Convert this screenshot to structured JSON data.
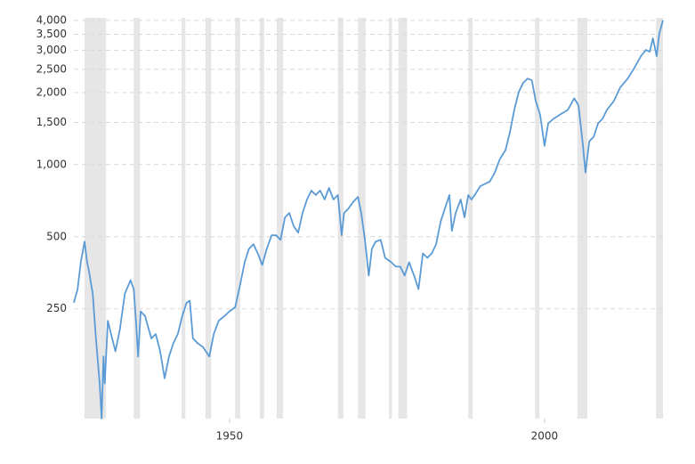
{
  "chart_data": {
    "type": "line",
    "log_scale": true,
    "grid": true,
    "color": "#5b9bd5",
    "band_color": "#e6e6e6",
    "xlim": [
      1925.3,
      2018.8
    ],
    "xticks": [
      1950,
      2000
    ],
    "ylim": [
      87,
      4100
    ],
    "yticks": [
      250,
      500,
      {
        "value": 1000,
        "label": "1,000"
      },
      {
        "value": 1500,
        "label": "1,500"
      },
      {
        "value": 2000,
        "label": "2,000"
      },
      {
        "value": 2500,
        "label": "2,500"
      },
      {
        "value": 3000,
        "label": "3,000"
      },
      {
        "value": 3500,
        "label": "3,500"
      },
      {
        "value": 4000,
        "label": "4,000"
      }
    ],
    "recessions": [
      [
        1927.0,
        1930.4
      ],
      [
        1934.8,
        1935.8
      ],
      [
        1942.4,
        1943.0
      ],
      [
        1946.2,
        1947.1
      ],
      [
        1950.9,
        1951.7
      ],
      [
        1954.8,
        1955.5
      ],
      [
        1957.5,
        1958.5
      ],
      [
        1967.2,
        1968.1
      ],
      [
        1970.4,
        1971.6
      ],
      [
        1975.3,
        1975.8
      ],
      [
        1976.8,
        1978.2
      ],
      [
        1987.9,
        1988.6
      ],
      [
        1998.5,
        1999.2
      ],
      [
        2005.2,
        2006.8
      ],
      [
        2017.7,
        2018.8
      ]
    ],
    "x": [
      1925.3,
      1925.9,
      1926.4,
      1927.0,
      1927.4,
      1927.7,
      1928.3,
      1928.8,
      1929.4,
      1929.7,
      1930.0,
      1930.2,
      1930.7,
      1931.2,
      1931.9,
      1932.6,
      1933.4,
      1934.3,
      1934.8,
      1935.2,
      1935.5,
      1935.9,
      1936.6,
      1937.6,
      1938.3,
      1939.0,
      1939.7,
      1940.4,
      1941.1,
      1941.8,
      1942.5,
      1943.2,
      1943.7,
      1944.2,
      1944.9,
      1945.8,
      1946.8,
      1947.5,
      1948.3,
      1949.2,
      1950.0,
      1950.9,
      1951.7,
      1952.4,
      1953.1,
      1953.8,
      1954.5,
      1955.2,
      1955.9,
      1956.7,
      1957.4,
      1958.1,
      1958.8,
      1959.5,
      1960.2,
      1960.9,
      1961.6,
      1962.3,
      1963.0,
      1963.7,
      1964.4,
      1965.1,
      1965.8,
      1966.5,
      1967.2,
      1967.8,
      1968.2,
      1968.9,
      1969.6,
      1970.4,
      1970.9,
      1971.5,
      1972.1,
      1972.6,
      1973.2,
      1974.0,
      1974.7,
      1975.7,
      1976.4,
      1977.1,
      1977.8,
      1978.5,
      1979.3,
      1980.0,
      1980.7,
      1981.4,
      1982.1,
      1982.8,
      1983.5,
      1984.2,
      1984.9,
      1985.3,
      1985.9,
      1986.7,
      1987.3,
      1987.9,
      1988.4,
      1989.1,
      1989.8,
      1991.3,
      1992.1,
      1992.9,
      1993.8,
      1994.5,
      1995.2,
      1995.9,
      1996.6,
      1997.3,
      1998.0,
      1998.6,
      1999.3,
      2000.0,
      2000.6,
      2001.4,
      2002.5,
      2003.7,
      2004.7,
      2005.4,
      2006.1,
      2006.5,
      2007.1,
      2007.8,
      2008.5,
      2009.2,
      2009.9,
      2011.0,
      2012.0,
      2013.2,
      2014.1,
      2015.3,
      2016.1,
      2016.7,
      2017.2,
      2017.8,
      2018.2,
      2018.8
    ],
    "values": [
      265,
      302,
      391,
      477,
      391,
      359,
      289,
      188,
      122,
      87,
      158,
      122,
      223,
      196,
      166,
      205,
      289,
      329,
      302,
      214,
      158,
      244,
      233,
      188,
      196,
      166,
      128,
      158,
      180,
      196,
      233,
      265,
      270,
      188,
      180,
      173,
      158,
      196,
      223,
      233,
      244,
      254,
      316,
      391,
      445,
      465,
      426,
      381,
      445,
      507,
      507,
      485,
      602,
      628,
      552,
      520,
      628,
      715,
      779,
      746,
      779,
      715,
      799,
      715,
      746,
      507,
      628,
      656,
      697,
      733,
      628,
      485,
      344,
      445,
      477,
      485,
      408,
      391,
      375,
      375,
      344,
      391,
      344,
      302,
      426,
      408,
      426,
      465,
      576,
      656,
      746,
      529,
      628,
      715,
      602,
      746,
      715,
      758,
      813,
      849,
      926,
      1052,
      1149,
      1363,
      1691,
      2008,
      2190,
      2286,
      2247,
      1842,
      1620,
      1198,
      1486,
      1551,
      1620,
      1691,
      1891,
      1765,
      1198,
      926,
      1251,
      1306,
      1486,
      1551,
      1691,
      1842,
      2097,
      2286,
      2491,
      2835,
      3011,
      2960,
      3364,
      2835,
      3515,
      4000
    ]
  }
}
